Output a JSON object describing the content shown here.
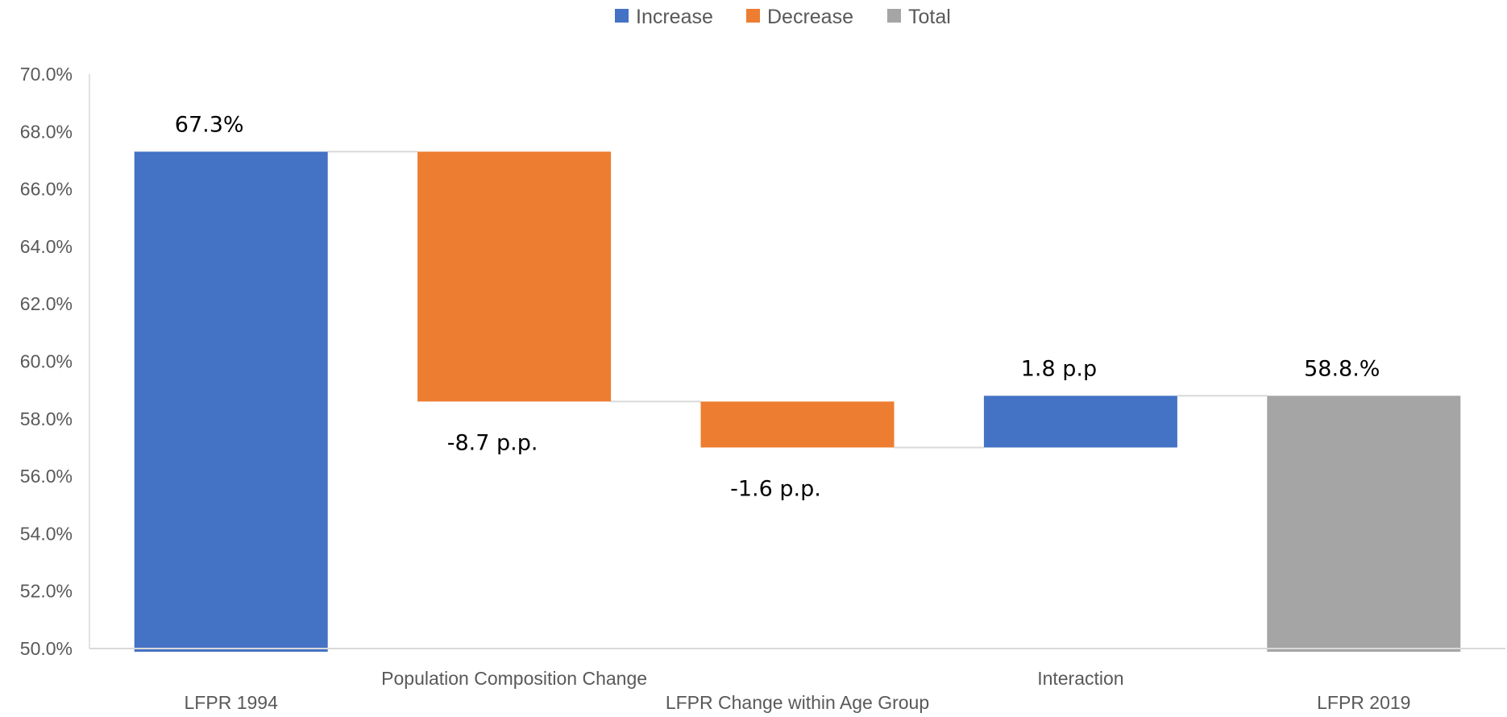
{
  "chart_data": {
    "type": "bar",
    "subtype": "waterfall",
    "title": "",
    "xlabel": "",
    "ylabel": "",
    "ylim": [
      50.0,
      70.0
    ],
    "yticks": [
      "50.0%",
      "52.0%",
      "54.0%",
      "56.0%",
      "58.0%",
      "60.0%",
      "62.0%",
      "64.0%",
      "66.0%",
      "68.0%",
      "70.0%"
    ],
    "grid": false,
    "legend_position": "top",
    "legend": [
      {
        "label": "Increase",
        "color": "#4472C4"
      },
      {
        "label": "Decrease",
        "color": "#ED7D31"
      },
      {
        "label": "Total",
        "color": "#A5A5A5"
      }
    ],
    "categories": [
      "LFPR 1994",
      "Population Composition Change",
      "LFPR Change within Age Group",
      "Interaction",
      "LFPR 2019"
    ],
    "bars": [
      {
        "category": "LFPR 1994",
        "kind": "Increase",
        "start": 50.0,
        "end": 67.3,
        "label": "67.3%"
      },
      {
        "category": "Population Composition Change",
        "kind": "Decrease",
        "start": 67.3,
        "end": 58.6,
        "label": "-8.7 p.p."
      },
      {
        "category": "LFPR Change within Age Group",
        "kind": "Decrease",
        "start": 58.6,
        "end": 57.0,
        "label": "-1.6 p.p."
      },
      {
        "category": "Interaction",
        "kind": "Increase",
        "start": 57.0,
        "end": 58.8,
        "label": "1.8 p.p"
      },
      {
        "category": "LFPR 2019",
        "kind": "Total",
        "start": 50.0,
        "end": 58.8,
        "label": "58.8.%"
      }
    ]
  }
}
